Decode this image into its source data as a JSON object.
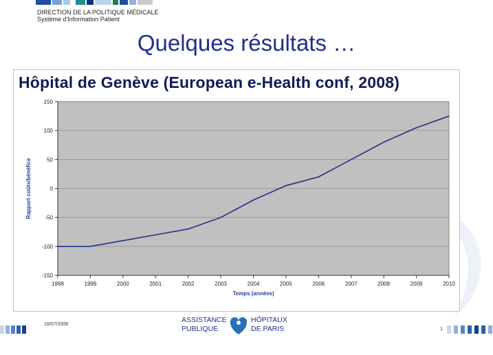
{
  "header": {
    "line1": "DIRECTION DE LA POLITIQUE MÉDICALE",
    "line2": "Système d'Information Patient"
  },
  "slide": {
    "title": "Quelques résultats …"
  },
  "footer": {
    "date": "16/07/2009",
    "page": "1",
    "logo_left_top": "ASSISTANCE",
    "logo_left_bottom": "PUBLIQUE",
    "logo_right_top": "HÔPITAUX",
    "logo_right_bottom": "DE  PARIS"
  },
  "colors": {
    "title": "#1f2f8a",
    "plot_bg": "#c0c0c0",
    "line": "#1f2d8c",
    "axis_label": "#2a3ea8"
  },
  "chart_data": {
    "type": "line",
    "title": "Hôpital de Genève (European e-Health conf, 2008)",
    "xlabel": "Temps (années)",
    "ylabel": "Rapport coûts/bénéfice",
    "x": [
      1998,
      1999,
      2000,
      2001,
      2002,
      2003,
      2004,
      2005,
      2006,
      2007,
      2008,
      2009,
      2010
    ],
    "series": [
      {
        "values": [
          -100,
          -100,
          -90,
          -80,
          -70,
          -50,
          -20,
          5,
          20,
          50,
          80,
          105,
          125
        ]
      }
    ],
    "xlim": [
      1998,
      2010
    ],
    "ylim": [
      -150,
      150
    ],
    "yticks": [
      -150,
      -100,
      -50,
      0,
      50,
      100,
      150
    ],
    "grid": true,
    "legend": "none"
  }
}
